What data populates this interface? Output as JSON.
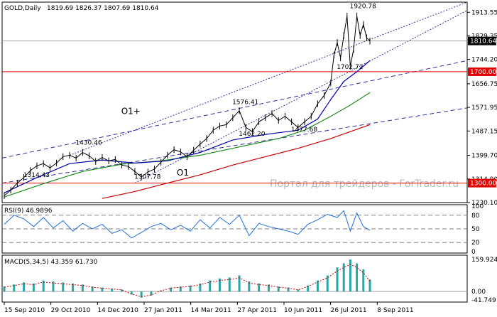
{
  "header": {
    "symbol": "GOLD,Daily",
    "ohlc": "1819.69 1826.37 1807.69 1810.64"
  },
  "watermark": "Портал для трейдеров - ForTrader.ru",
  "chart_data": [
    {
      "type": "line",
      "title": "GOLD,Daily",
      "x_ticks": [
        "15 Sep 2010",
        "29 Oct 2010",
        "14 Dec 2010",
        "27 Jan 2011",
        "14 Mar 2011",
        "27 Apr 2011",
        "10 Jun 2011",
        "26 Jul 2011",
        "8 Sep 2011"
      ],
      "y_ticks": [
        "1913.55",
        "1829.35",
        "1744.20",
        "1656.75",
        "1571.95",
        "1487.15",
        "1399.70",
        "1314.90",
        "1230.10"
      ],
      "ylim": [
        1230.1,
        1950
      ],
      "current_price": "1810.64",
      "horizontal_levels": [
        {
          "value": "1700.00",
          "color": "#e00000"
        },
        {
          "value": "1300.00",
          "color": "#e00000"
        }
      ],
      "annotations": [
        {
          "label": "1920.78",
          "x": 108,
          "y": 1920.78
        },
        {
          "label": "1702.72",
          "x": 104,
          "y": 1702.72
        },
        {
          "label": "1576.41",
          "x": 72,
          "y": 1576.41
        },
        {
          "label": "1462.20",
          "x": 74,
          "y": 1462.2
        },
        {
          "label": "1477.68",
          "x": 90,
          "y": 1477.68
        },
        {
          "label": "1430.46",
          "x": 24,
          "y": 1430.46
        },
        {
          "label": "1314.43",
          "x": 8,
          "y": 1314.43
        },
        {
          "label": "1307.78",
          "x": 42,
          "y": 1307.78
        },
        {
          "label": "O1+",
          "x": 38,
          "y": 1540
        },
        {
          "label": "O1",
          "x": 55,
          "y": 1320
        }
      ],
      "price": [
        [
          0,
          1255
        ],
        [
          2,
          1275
        ],
        [
          4,
          1300
        ],
        [
          6,
          1320
        ],
        [
          8,
          1345
        ],
        [
          10,
          1362
        ],
        [
          12,
          1370
        ],
        [
          14,
          1355
        ],
        [
          16,
          1372
        ],
        [
          18,
          1395
        ],
        [
          20,
          1400
        ],
        [
          22,
          1390
        ],
        [
          24,
          1410
        ],
        [
          26,
          1398
        ],
        [
          28,
          1378
        ],
        [
          30,
          1392
        ],
        [
          32,
          1380
        ],
        [
          34,
          1385
        ],
        [
          36,
          1365
        ],
        [
          38,
          1360
        ],
        [
          40,
          1342
        ],
        [
          42,
          1322
        ],
        [
          44,
          1340
        ],
        [
          46,
          1350
        ],
        [
          48,
          1375
        ],
        [
          50,
          1400
        ],
        [
          52,
          1420
        ],
        [
          54,
          1412
        ],
        [
          56,
          1395
        ],
        [
          58,
          1418
        ],
        [
          60,
          1440
        ],
        [
          62,
          1460
        ],
        [
          64,
          1490
        ],
        [
          66,
          1505
        ],
        [
          68,
          1510
        ],
        [
          70,
          1535
        ],
        [
          72,
          1560
        ],
        [
          74,
          1500
        ],
        [
          76,
          1485
        ],
        [
          78,
          1520
        ],
        [
          80,
          1535
        ],
        [
          82,
          1550
        ],
        [
          84,
          1525
        ],
        [
          86,
          1540
        ],
        [
          88,
          1520
        ],
        [
          90,
          1500
        ],
        [
          92,
          1520
        ],
        [
          94,
          1540
        ],
        [
          96,
          1585
        ],
        [
          98,
          1615
        ],
        [
          100,
          1660
        ],
        [
          101,
          1760
        ],
        [
          102,
          1805
        ],
        [
          103,
          1750
        ],
        [
          104,
          1830
        ],
        [
          105,
          1900
        ],
        [
          106,
          1720
        ],
        [
          107,
          1780
        ],
        [
          108,
          1900
        ],
        [
          109,
          1830
        ],
        [
          110,
          1870
        ],
        [
          111,
          1822
        ],
        [
          112,
          1810
        ]
      ],
      "ma_blue": [
        [
          0,
          1265
        ],
        [
          10,
          1320
        ],
        [
          20,
          1370
        ],
        [
          30,
          1383
        ],
        [
          40,
          1372
        ],
        [
          50,
          1380
        ],
        [
          60,
          1410
        ],
        [
          70,
          1455
        ],
        [
          80,
          1475
        ],
        [
          90,
          1490
        ],
        [
          96,
          1530
        ],
        [
          100,
          1600
        ],
        [
          104,
          1665
        ],
        [
          108,
          1700
        ],
        [
          112,
          1740
        ]
      ],
      "ma_green": [
        [
          0,
          1250
        ],
        [
          12,
          1298
        ],
        [
          24,
          1342
        ],
        [
          36,
          1368
        ],
        [
          48,
          1380
        ],
        [
          60,
          1400
        ],
        [
          72,
          1430
        ],
        [
          84,
          1460
        ],
        [
          92,
          1490
        ],
        [
          100,
          1540
        ],
        [
          106,
          1580
        ],
        [
          112,
          1625
        ]
      ],
      "ma_red": [
        [
          30,
          1245
        ],
        [
          40,
          1270
        ],
        [
          50,
          1300
        ],
        [
          60,
          1330
        ],
        [
          70,
          1365
        ],
        [
          80,
          1395
        ],
        [
          90,
          1425
        ],
        [
          100,
          1460
        ],
        [
          106,
          1485
        ],
        [
          112,
          1510
        ]
      ]
    },
    {
      "type": "line",
      "title": "RSI(9) 46.9896",
      "y_ticks": [
        "100",
        "80",
        "50",
        "20",
        "0"
      ],
      "ylim": [
        0,
        100
      ],
      "levels": [
        80,
        50,
        20
      ],
      "values": [
        [
          0,
          60
        ],
        [
          3,
          80
        ],
        [
          6,
          72
        ],
        [
          9,
          55
        ],
        [
          12,
          75
        ],
        [
          15,
          52
        ],
        [
          18,
          68
        ],
        [
          21,
          45
        ],
        [
          24,
          62
        ],
        [
          27,
          50
        ],
        [
          30,
          60
        ],
        [
          33,
          40
        ],
        [
          36,
          48
        ],
        [
          39,
          30
        ],
        [
          42,
          42
        ],
        [
          45,
          55
        ],
        [
          48,
          62
        ],
        [
          51,
          48
        ],
        [
          54,
          58
        ],
        [
          57,
          45
        ],
        [
          60,
          70
        ],
        [
          63,
          52
        ],
        [
          66,
          75
        ],
        [
          69,
          60
        ],
        [
          72,
          80
        ],
        [
          75,
          35
        ],
        [
          78,
          62
        ],
        [
          81,
          55
        ],
        [
          84,
          50
        ],
        [
          87,
          45
        ],
        [
          90,
          38
        ],
        [
          93,
          60
        ],
        [
          96,
          70
        ],
        [
          99,
          82
        ],
        [
          102,
          75
        ],
        [
          104,
          90
        ],
        [
          106,
          45
        ],
        [
          108,
          85
        ],
        [
          110,
          55
        ],
        [
          112,
          47
        ]
      ]
    },
    {
      "type": "bar",
      "title": "MACD(5,34,5) 43.359 61.730",
      "y_ticks": [
        "159.924",
        "0.00",
        "-41.749"
      ],
      "ylim": [
        -41.749,
        170
      ],
      "values": [
        [
          0,
          25
        ],
        [
          3,
          35
        ],
        [
          6,
          45
        ],
        [
          9,
          40
        ],
        [
          12,
          55
        ],
        [
          15,
          50
        ],
        [
          18,
          45
        ],
        [
          21,
          40
        ],
        [
          24,
          35
        ],
        [
          27,
          25
        ],
        [
          30,
          20
        ],
        [
          33,
          15
        ],
        [
          36,
          10
        ],
        [
          39,
          -15
        ],
        [
          42,
          -30
        ],
        [
          45,
          -20
        ],
        [
          48,
          5
        ],
        [
          51,
          20
        ],
        [
          54,
          25
        ],
        [
          57,
          30
        ],
        [
          60,
          40
        ],
        [
          63,
          55
        ],
        [
          66,
          65
        ],
        [
          69,
          70
        ],
        [
          72,
          80
        ],
        [
          75,
          50
        ],
        [
          78,
          40
        ],
        [
          81,
          35
        ],
        [
          84,
          25
        ],
        [
          87,
          20
        ],
        [
          90,
          10
        ],
        [
          93,
          30
        ],
        [
          96,
          55
        ],
        [
          99,
          80
        ],
        [
          102,
          120
        ],
        [
          104,
          140
        ],
        [
          106,
          159
        ],
        [
          108,
          140
        ],
        [
          110,
          110
        ],
        [
          112,
          60
        ]
      ]
    }
  ]
}
